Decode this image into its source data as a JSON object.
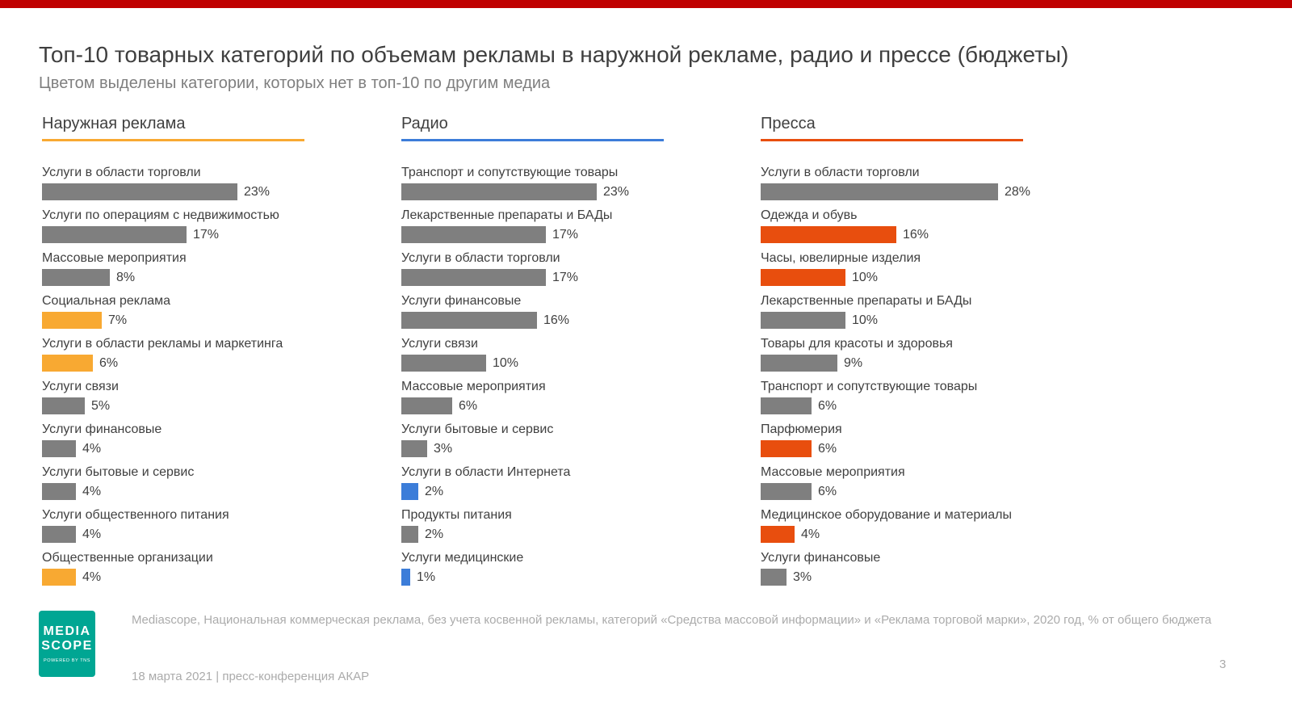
{
  "page": {
    "title": "Топ-10 товарных категорий по объемам рекламы в наружной рекламе, радио и прессе (бюджеты)",
    "subtitle": "Цветом выделены категории, которых нет в топ-10 по другим медиа",
    "page_number": "3"
  },
  "footer": {
    "source_text": "Mediascope, Национальная коммерческая реклама, без учета косвенной рекламы, категорий «Средства массовой информации» и «Реклама торговой марки», 2020 год, % от общего бюджета",
    "date_text": "18 марта 2021 | пресс-конференция АКАР",
    "logo": {
      "line1": "MEDIA",
      "line2": "SCOPE",
      "tagline": "POWERED BY TNS",
      "color": "#00a693"
    }
  },
  "colors": {
    "top_bar": "#c00000",
    "bar_default": "#7f7f7f",
    "outdoor_accent": "#f8a932",
    "radio_accent": "#3c7dd9",
    "press_accent": "#e84e0e"
  },
  "chart_data": [
    {
      "type": "bar",
      "title": "Наружная реклама",
      "accent": "#f8a932",
      "unit": "%",
      "xlim": [
        0,
        30
      ],
      "items": [
        {
          "label": "Услуги в области торговли",
          "value": 23,
          "highlighted": false
        },
        {
          "label": "Услуги по операциям с недвижимостью",
          "value": 17,
          "highlighted": false
        },
        {
          "label": "Массовые мероприятия",
          "value": 8,
          "highlighted": false
        },
        {
          "label": "Социальная реклама",
          "value": 7,
          "highlighted": true
        },
        {
          "label": "Услуги в области рекламы и маркетинга",
          "value": 6,
          "highlighted": true
        },
        {
          "label": "Услуги связи",
          "value": 5,
          "highlighted": false
        },
        {
          "label": "Услуги финансовые",
          "value": 4,
          "highlighted": false
        },
        {
          "label": "Услуги бытовые и сервис",
          "value": 4,
          "highlighted": false
        },
        {
          "label": "Услуги общественного питания",
          "value": 4,
          "highlighted": false
        },
        {
          "label": "Общественные организации",
          "value": 4,
          "highlighted": true
        }
      ]
    },
    {
      "type": "bar",
      "title": "Радио",
      "accent": "#3c7dd9",
      "unit": "%",
      "xlim": [
        0,
        30
      ],
      "items": [
        {
          "label": "Транспорт и сопутствующие товары",
          "value": 23,
          "highlighted": false
        },
        {
          "label": "Лекарственные препараты и БАДы",
          "value": 17,
          "highlighted": false
        },
        {
          "label": "Услуги в области торговли",
          "value": 17,
          "highlighted": false
        },
        {
          "label": "Услуги финансовые",
          "value": 16,
          "highlighted": false
        },
        {
          "label": "Услуги связи",
          "value": 10,
          "highlighted": false
        },
        {
          "label": "Массовые мероприятия",
          "value": 6,
          "highlighted": false
        },
        {
          "label": "Услуги бытовые и сервис",
          "value": 3,
          "highlighted": false
        },
        {
          "label": "Услуги в области Интернета",
          "value": 2,
          "highlighted": true
        },
        {
          "label": "Продукты питания",
          "value": 2,
          "highlighted": false
        },
        {
          "label": "Услуги медицинские",
          "value": 1,
          "highlighted": true
        }
      ]
    },
    {
      "type": "bar",
      "title": "Пресса",
      "accent": "#e84e0e",
      "unit": "%",
      "xlim": [
        0,
        30
      ],
      "items": [
        {
          "label": "Услуги в области торговли",
          "value": 28,
          "highlighted": false
        },
        {
          "label": "Одежда и обувь",
          "value": 16,
          "highlighted": true
        },
        {
          "label": "Часы, ювелирные изделия",
          "value": 10,
          "highlighted": true
        },
        {
          "label": "Лекарственные препараты и БАДы",
          "value": 10,
          "highlighted": false
        },
        {
          "label": "Товары для красоты и здоровья",
          "value": 9,
          "highlighted": false
        },
        {
          "label": "Транспорт и сопутствующие товары",
          "value": 6,
          "highlighted": false
        },
        {
          "label": "Парфюмерия",
          "value": 6,
          "highlighted": true
        },
        {
          "label": "Массовые мероприятия",
          "value": 6,
          "highlighted": false
        },
        {
          "label": "Медицинское оборудование и материалы",
          "value": 4,
          "highlighted": true
        },
        {
          "label": "Услуги финансовые",
          "value": 3,
          "highlighted": false
        }
      ]
    }
  ]
}
